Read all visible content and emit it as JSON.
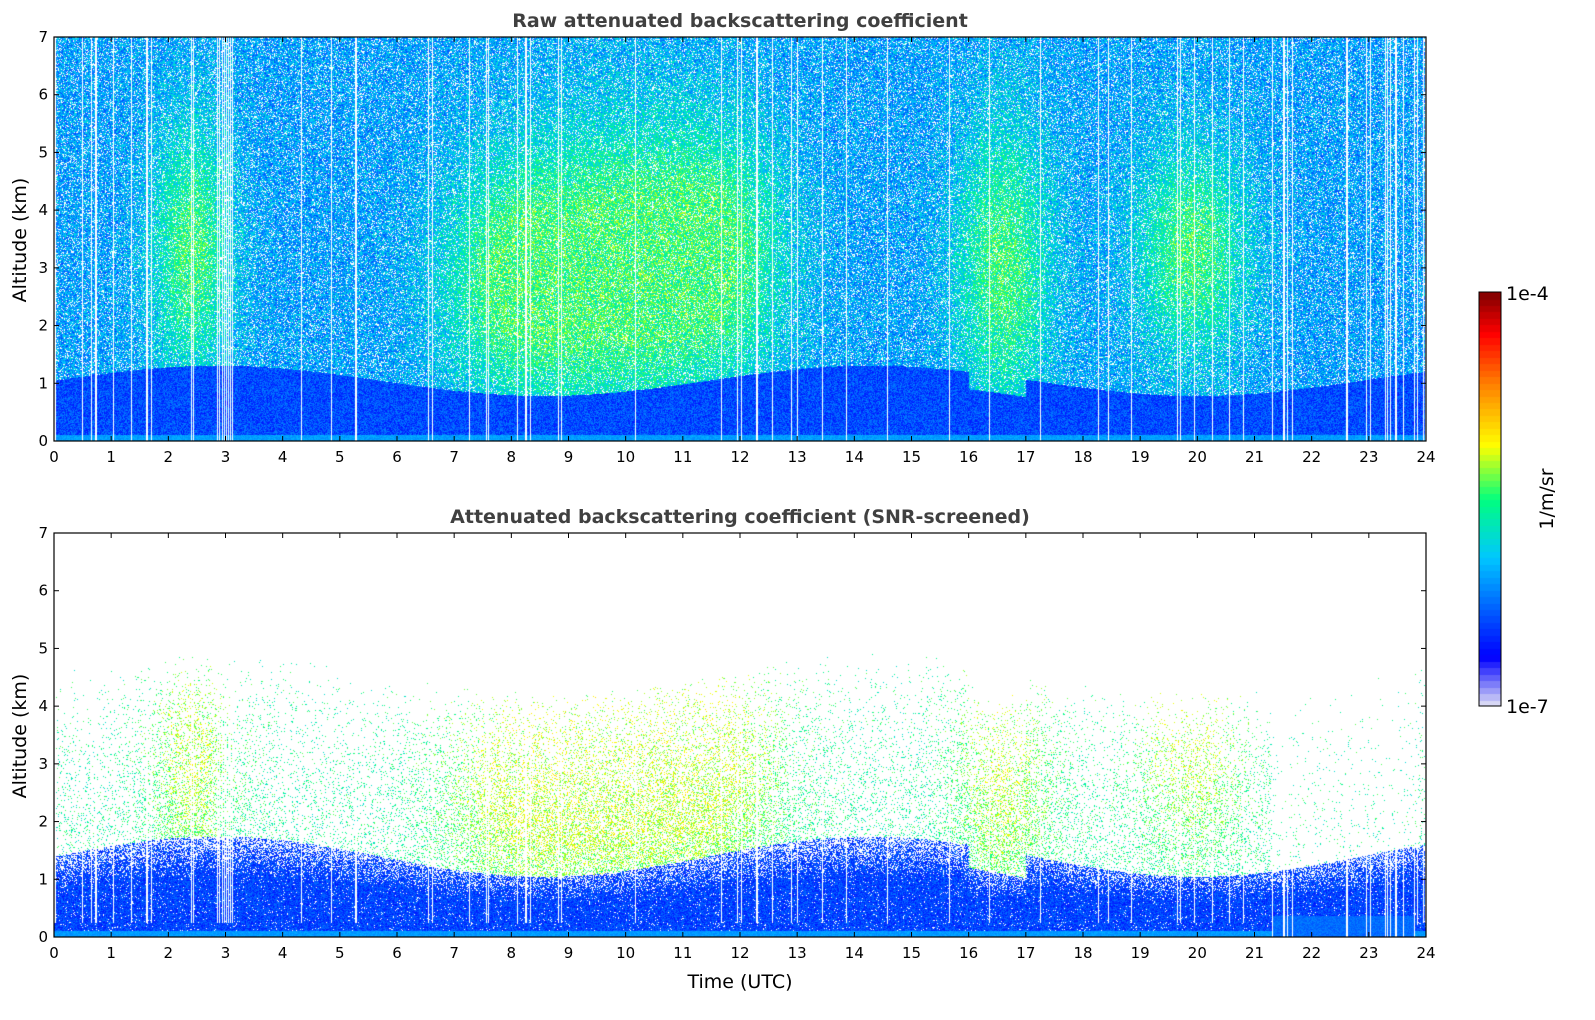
{
  "chart_data": [
    {
      "type": "heatmap",
      "title": "Raw attenuated backscattering coefficient",
      "xlabel": "",
      "ylabel": "Altitude (km)",
      "xlim": [
        0,
        24
      ],
      "ylim": [
        0,
        7
      ],
      "x_ticks": [
        0,
        1,
        2,
        3,
        4,
        5,
        6,
        7,
        8,
        9,
        10,
        11,
        12,
        13,
        14,
        15,
        16,
        17,
        18,
        19,
        20,
        21,
        22,
        23,
        24
      ],
      "y_ticks": [
        0,
        1,
        2,
        3,
        4,
        5,
        6,
        7
      ],
      "grid": false,
      "screened": false
    },
    {
      "type": "heatmap",
      "title": "Attenuated backscattering coefficient (SNR-screened)",
      "xlabel": "Time (UTC)",
      "ylabel": "Altitude (km)",
      "xlim": [
        0,
        24
      ],
      "ylim": [
        0,
        7
      ],
      "x_ticks": [
        0,
        1,
        2,
        3,
        4,
        5,
        6,
        7,
        8,
        9,
        10,
        11,
        12,
        13,
        14,
        15,
        16,
        17,
        18,
        19,
        20,
        21,
        22,
        23,
        24
      ],
      "y_ticks": [
        0,
        1,
        2,
        3,
        4,
        5,
        6,
        7
      ],
      "grid": false,
      "screened": true
    }
  ],
  "colorbar": {
    "label": "1/m/sr",
    "max_label": "1e-4",
    "min_label": "1e-7",
    "scale": "log",
    "range": [
      1e-07,
      0.0001
    ],
    "colormap": [
      "#e6e6f5",
      "#0000ff",
      "#00c8ff",
      "#00ff80",
      "#ffff00",
      "#ff8000",
      "#ff0000",
      "#800000"
    ]
  },
  "colors": {
    "axis": "#000000",
    "title_text": "#404040",
    "background": "#ffffff"
  }
}
